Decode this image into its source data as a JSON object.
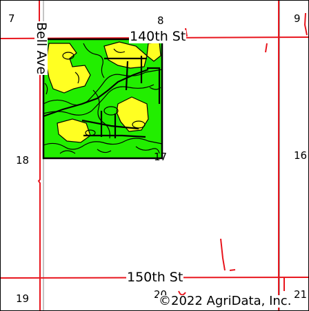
{
  "map": {
    "colors": {
      "road": "#e8141c",
      "section_line": "#8a8a8a",
      "soil_green": "#22ee00",
      "soil_yellow": "#ffff22",
      "field_outline": "#000000"
    },
    "roads": {
      "north": "140th St",
      "south": "150th St",
      "west": "Bell Ave"
    },
    "section_numbers": {
      "s7": "7",
      "s8": "8",
      "s9": "9",
      "s16": "16",
      "s17": "17",
      "s18": "18",
      "s19": "19",
      "s20": "20",
      "s21": "21"
    },
    "copyright": "©2022 AgriData, Inc."
  }
}
